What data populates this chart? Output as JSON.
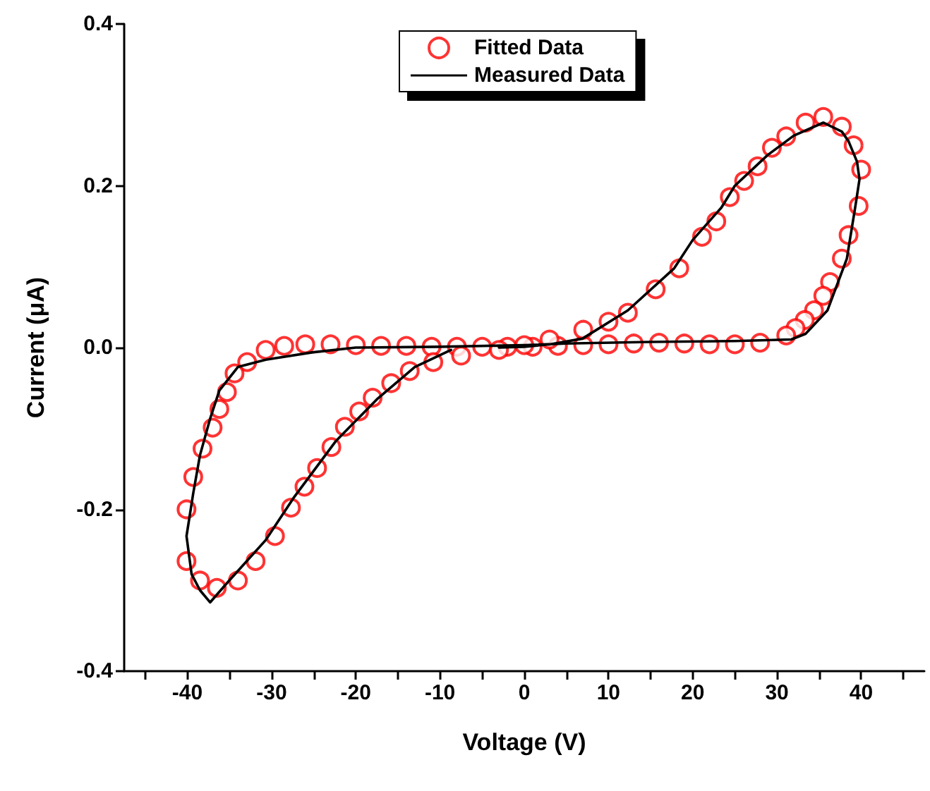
{
  "chart_data": {
    "type": "scatter",
    "xlabel": "Voltage (V)",
    "ylabel": "Current (μA)",
    "xlim": [
      -47.5,
      47.5
    ],
    "xticks": [
      {
        "value": -45,
        "label": null
      },
      -40,
      {
        "value": -35,
        "label": null
      },
      -30,
      {
        "value": -25,
        "label": null
      },
      -20,
      {
        "value": -15,
        "label": null
      },
      -10,
      {
        "value": -5,
        "label": null
      },
      0,
      {
        "value": 5,
        "label": null
      },
      10,
      {
        "value": 15,
        "label": null
      },
      20,
      {
        "value": 25,
        "label": null
      },
      30,
      {
        "value": 35,
        "label": null
      },
      40,
      {
        "value": 45,
        "label": null
      }
    ],
    "ylim": [
      -0.4,
      0.4
    ],
    "yticks": [
      -0.4,
      -0.2,
      {
        "value": 0,
        "label": "0.0"
      },
      0.2,
      0.4
    ],
    "grid": false,
    "legend": "top",
    "series": [
      {
        "name": "Fitted Data",
        "type": "scatter",
        "marker": "circle",
        "color": "#ff0000",
        "x": [
          40,
          39.7,
          38.5,
          37.7,
          36.3,
          35.5,
          34.4,
          33.3,
          32.2,
          31.1,
          28,
          25,
          22,
          19,
          16,
          13,
          10,
          7,
          4,
          1,
          -2,
          -5,
          -8,
          -11,
          -14,
          -17,
          -20,
          -23,
          -26,
          -28.5,
          -30.7,
          -32.9,
          -34.4,
          -35.3,
          -36.2,
          -37,
          -38.2,
          -39.3,
          -40.1,
          -40.1,
          -38.5,
          -36.5,
          -34,
          -31.9,
          -29.6,
          -27.7,
          -26.1,
          -24.6,
          -22.9,
          -21.3,
          -19.6,
          -18,
          -15.8,
          -13.6,
          -10.8,
          -7.5,
          -3,
          0,
          3,
          7,
          10,
          12.3,
          15.6,
          18.4,
          21.1,
          22.8,
          24.4,
          26.1,
          27.7,
          29.4,
          31.1,
          33.4,
          35.5,
          37.7,
          39.1
        ],
        "values": [
          0.22,
          0.175,
          0.139,
          0.11,
          0.081,
          0.064,
          0.046,
          0.034,
          0.024,
          0.015,
          0.006,
          0.004,
          0.004,
          0.005,
          0.006,
          0.005,
          0.004,
          0.003,
          0.002,
          0.001,
          0.001,
          0.001,
          0.001,
          0.001,
          0.002,
          0.002,
          0.003,
          0.004,
          0.004,
          0.002,
          -0.003,
          -0.018,
          -0.032,
          -0.055,
          -0.076,
          -0.099,
          -0.125,
          -0.16,
          -0.2,
          -0.264,
          -0.288,
          -0.297,
          -0.288,
          -0.264,
          -0.233,
          -0.198,
          -0.172,
          -0.149,
          -0.123,
          -0.098,
          -0.079,
          -0.062,
          -0.044,
          -0.029,
          -0.018,
          -0.01,
          -0.003,
          0.003,
          0.01,
          0.022,
          0.032,
          0.043,
          0.072,
          0.098,
          0.137,
          0.156,
          0.186,
          0.206,
          0.224,
          0.247,
          0.261,
          0.278,
          0.285,
          0.273,
          0.25
        ]
      },
      {
        "name": "Measured Data",
        "type": "line",
        "marker": "none",
        "line_style": "solid",
        "color": "#000000",
        "x": [
          -3,
          0,
          3,
          6.9,
          12.3,
          17.8,
          20,
          23.4,
          25,
          28.9,
          32,
          35.5,
          37.7,
          38.5,
          39.5,
          39.8,
          39.3,
          38.3,
          36,
          33.4,
          31.7,
          25,
          15,
          5,
          0,
          -10,
          -20,
          -25.2,
          -30.7,
          -34,
          -36.2,
          -37.3,
          -38.5,
          -39.3,
          -40.1,
          -39.5,
          -38.5,
          -37.3,
          -35.2,
          -30.7,
          -27.4,
          -22.4,
          -17.5,
          -13,
          -8.7
        ],
        "values": [
          0,
          0.001,
          0.004,
          0.011,
          0.046,
          0.098,
          0.133,
          0.173,
          0.2,
          0.238,
          0.262,
          0.278,
          0.267,
          0.255,
          0.23,
          0.208,
          0.174,
          0.11,
          0.046,
          0.017,
          0.01,
          0.008,
          0.007,
          0.005,
          0.003,
          0.001,
          0,
          -0.006,
          -0.015,
          -0.024,
          -0.053,
          -0.088,
          -0.133,
          -0.18,
          -0.233,
          -0.28,
          -0.3,
          -0.315,
          -0.29,
          -0.238,
          -0.186,
          -0.116,
          -0.064,
          -0.024,
          -0.003
        ]
      }
    ]
  }
}
